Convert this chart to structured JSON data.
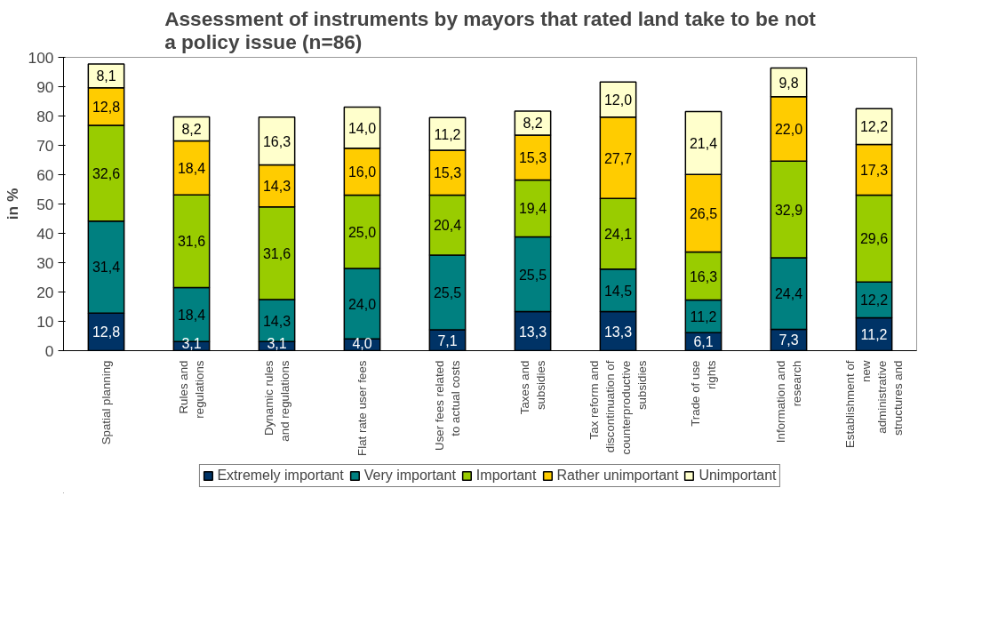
{
  "chart_data": {
    "type": "bar",
    "stacked": true,
    "title": "Assessment of instruments by mayors that rated land take to be not\na policy issue (n=86)",
    "ylabel": "in %",
    "categories": [
      "Spatial planning",
      "Rules and\nregulations",
      "Dynamic rules\nand regulations",
      "Flat rate user fees",
      "User fees related\nto actual costs",
      "Taxes and\nsubsidies",
      "Tax reform and\ndiscontinuation of\ncounterproductive\nsubsidies",
      "Trade of use\nrights",
      "Information and\nresearch",
      "Establishment of\nnew\nadministrative\nstructures and"
    ],
    "ylim": [
      0,
      100
    ],
    "yticks": [
      0,
      10,
      20,
      30,
      40,
      50,
      60,
      70,
      80,
      90,
      100
    ],
    "grid": false,
    "legend": "bottom",
    "series": [
      {
        "name": "Extremely important",
        "color": "#003366",
        "values": [
          12.8,
          3.1,
          3.1,
          4.0,
          7.1,
          13.3,
          13.3,
          6.1,
          7.3,
          11.2
        ],
        "value_labels": [
          "12,8",
          "3,1",
          "3,1",
          "4,0",
          "7,1",
          "13,3",
          "13,3",
          "6,1",
          "7,3",
          "11,2"
        ]
      },
      {
        "name": "Very important",
        "color": "#008080",
        "values": [
          31.4,
          18.4,
          14.3,
          24.0,
          25.5,
          25.5,
          14.5,
          11.2,
          24.4,
          12.2
        ],
        "value_labels": [
          "31,4",
          "18,4",
          "14,3",
          "24,0",
          "25,5",
          "25,5",
          "14,5",
          "11,2",
          "24,4",
          "12,2"
        ]
      },
      {
        "name": "Important",
        "color": "#99cc00",
        "values": [
          32.6,
          31.6,
          31.6,
          25.0,
          20.4,
          19.4,
          24.1,
          16.3,
          32.9,
          29.6
        ],
        "value_labels": [
          "32,6",
          "31,6",
          "31,6",
          "25,0",
          "20,4",
          "19,4",
          "24,1",
          "16,3",
          "32,9",
          "29,6"
        ]
      },
      {
        "name": "Rather unimportant",
        "color": "#ffcc00",
        "values": [
          12.8,
          18.4,
          14.3,
          16.0,
          15.3,
          15.3,
          27.7,
          26.5,
          22.0,
          17.3
        ],
        "value_labels": [
          "12,8",
          "18,4",
          "14,3",
          "16,0",
          "15,3",
          "15,3",
          "27,7",
          "26,5",
          "22,0",
          "17,3"
        ]
      },
      {
        "name": "Unimportant",
        "color": "#ffffcc",
        "values": [
          8.1,
          8.2,
          16.3,
          14.0,
          11.2,
          8.2,
          12.0,
          21.4,
          9.8,
          12.2
        ],
        "value_labels": [
          "8,1",
          "8,2",
          "16,3",
          "14,0",
          "11,2",
          "8,2",
          "12,0",
          "21,4",
          "9,8",
          "12,2"
        ]
      }
    ]
  }
}
